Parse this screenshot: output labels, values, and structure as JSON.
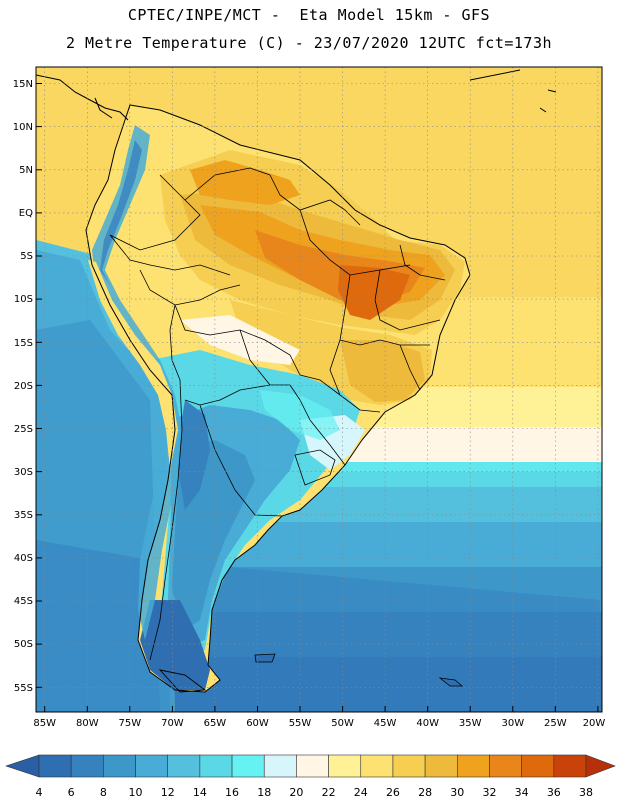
{
  "header": {
    "line1": "CPTEC/INPE/MCT -  Eta Model 15km - GFS",
    "line2": "2 Metre Temperature (C) - 23/07/2020 12UTC fct=173h"
  },
  "map": {
    "region": "South America",
    "variable": "2 metre temperature",
    "lat_labels": [
      "15N",
      "10N",
      "5N",
      "EQ",
      "5S",
      "10S",
      "15S",
      "20S",
      "25S",
      "30S",
      "35S",
      "40S",
      "45S",
      "50S",
      "55S"
    ],
    "lon_labels": [
      "85W",
      "80W",
      "75W",
      "70W",
      "65W",
      "60W",
      "55W",
      "50W",
      "45W",
      "40W",
      "35W",
      "30W",
      "25W",
      "20W"
    ]
  },
  "colorbar": {
    "ticks": [
      "4",
      "6",
      "8",
      "10",
      "12",
      "14",
      "16",
      "18",
      "20",
      "22",
      "24",
      "26",
      "28",
      "30",
      "32",
      "34",
      "36",
      "38"
    ],
    "colors": [
      "#2f6eb0",
      "#3582bf",
      "#3d98c9",
      "#48acd6",
      "#55c0de",
      "#5bd8e6",
      "#66f2f2",
      "#d6f6fb",
      "#fff6e6",
      "#fff196",
      "#fde272",
      "#f5ce52",
      "#eeba3c",
      "#efa21e",
      "#e8861c",
      "#df6a0e",
      "#c9420a"
    ],
    "low_color": "#2a5ea5",
    "high_color": "#b8300a"
  }
}
